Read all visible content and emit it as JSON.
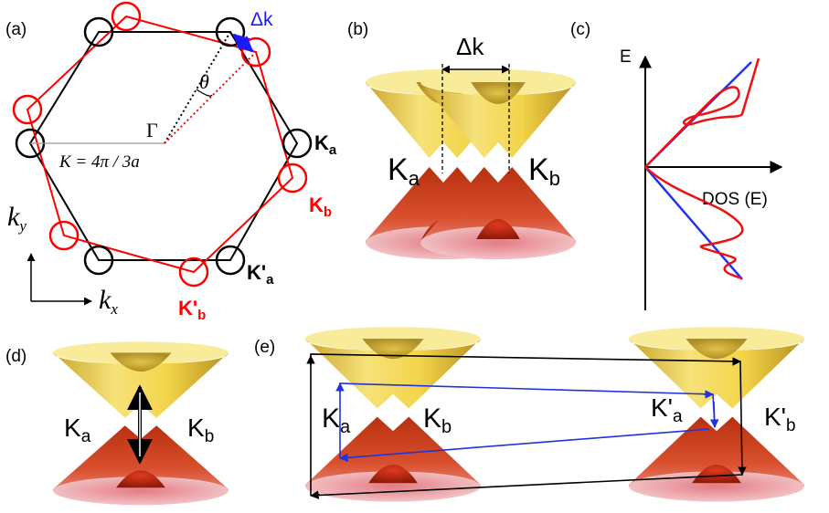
{
  "colors": {
    "black_lattice": "#000000",
    "red_lattice": "#ff0000",
    "delta_k_arrow": "#1a1aff",
    "cone_upper": "#f2d23a",
    "cone_lower": "#cc2a10",
    "blue_path": "#2233dd",
    "dos_red": "#ee1111",
    "dos_blue": "#2233ee"
  },
  "panels": {
    "a": {
      "label": "(a)",
      "delta_k": "Δk",
      "theta": "θ",
      "gamma": "Γ",
      "k_equation": "K = 4π / 3a",
      "ka": {
        "main": "K",
        "sub": "a"
      },
      "kb": {
        "main": "K",
        "sub": "b"
      },
      "kpa": {
        "main": "K'",
        "sub": "a"
      },
      "kpb": {
        "main": "K'",
        "sub": "b"
      },
      "axis_ky": {
        "main": "k",
        "sub": "y"
      },
      "axis_kx": {
        "main": "k",
        "sub": "x"
      }
    },
    "b": {
      "label": "(b)",
      "delta_k": "Δk",
      "ka": {
        "main": "K",
        "sub": "a"
      },
      "kb": {
        "main": "K",
        "sub": "b"
      }
    },
    "c": {
      "label": "(c)",
      "e_axis": "E",
      "dos_axis": "DOS (E)"
    },
    "d": {
      "label": "(d)",
      "ka": {
        "main": "K",
        "sub": "a"
      },
      "kb": {
        "main": "K",
        "sub": "b"
      }
    },
    "e": {
      "label": "(e)",
      "ka": {
        "main": "K",
        "sub": "a"
      },
      "kb": {
        "main": "K",
        "sub": "b"
      },
      "kpa": {
        "main": "K'",
        "sub": "a"
      },
      "kpb": {
        "main": "K'",
        "sub": "b"
      }
    }
  }
}
